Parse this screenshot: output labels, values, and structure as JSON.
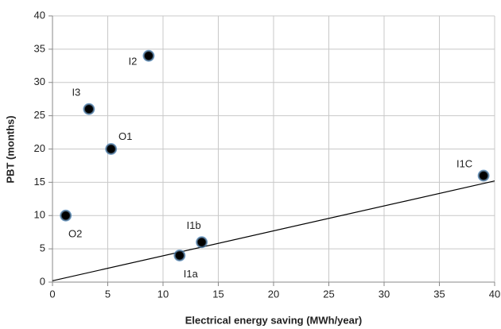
{
  "chart_data": {
    "type": "scatter",
    "x_label": "Electrical energy saving  (MWh/year)",
    "y_label": "PBT (months)",
    "x": [
      8.7,
      3.3,
      5.3,
      1.2,
      13.5,
      11.5,
      39
    ],
    "values": [
      34,
      26,
      20,
      10,
      6,
      4,
      16
    ],
    "point_labels": [
      "I2",
      "I3",
      "O1",
      "O2",
      "I1b",
      "I1a",
      "I1C"
    ],
    "color": "#000000",
    "trendline": {
      "x": [
        0,
        40
      ],
      "values": [
        0.2,
        15.2
      ]
    },
    "xlim": [
      0,
      40
    ],
    "xticks": [
      0,
      5,
      10,
      15,
      20,
      25,
      30,
      35,
      40
    ],
    "ylim": [
      0,
      40
    ],
    "yticks": [
      0,
      5,
      10,
      15,
      20,
      25,
      30,
      35,
      40
    ],
    "grid": true
  }
}
